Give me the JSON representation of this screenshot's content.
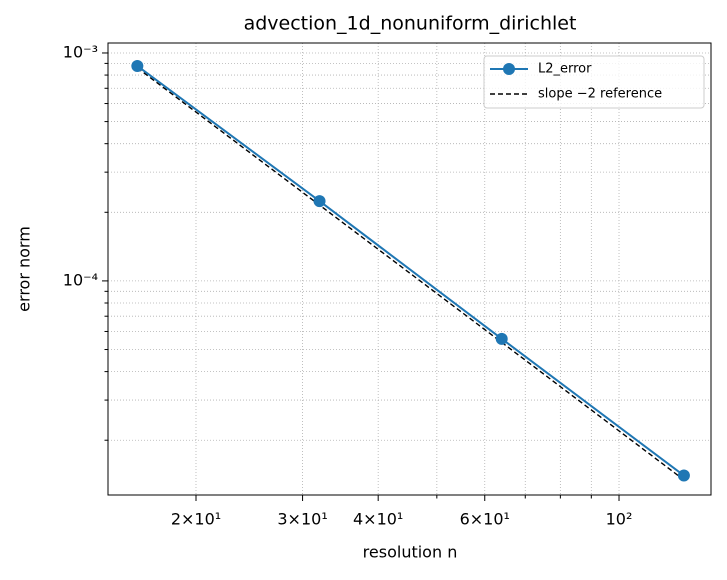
{
  "chart_data": {
    "type": "line",
    "title": "advection_1d_nonuniform_dirichlet",
    "xlabel": "resolution n",
    "ylabel": "error norm",
    "x": [
      16,
      32,
      64,
      128
    ],
    "series": [
      {
        "name": "L2_error",
        "color": "#1f77b4",
        "values": [
          0.000877,
          0.000224,
          5.57e-05,
          1.4e-05
        ],
        "marker": "o",
        "linestyle": "solid"
      },
      {
        "name": "slope −2 reference",
        "color": "#000000",
        "values": [
          0.00086,
          0.000215,
          5.375e-05,
          1.34e-05
        ],
        "linestyle": "dashed"
      }
    ],
    "xscale": "log",
    "yscale": "log",
    "xlim": [
      14.31,
      141.9
    ],
    "ylim": [
      1.15e-05,
      0.001106
    ],
    "xticks": [
      {
        "value": 20,
        "label": "2×10¹"
      },
      {
        "value": 30,
        "label": "3×10¹"
      },
      {
        "value": 40,
        "label": "4×10¹"
      },
      {
        "value": 60,
        "label": "6×10¹"
      },
      {
        "value": 100,
        "label": "10²"
      }
    ],
    "xminorticks": [
      50,
      70,
      80,
      90
    ],
    "yticks": [
      {
        "value": 0.001,
        "label": "10⁻³"
      },
      {
        "value": 0.0001,
        "label": "10⁻⁴"
      }
    ],
    "yminorticks": [
      2e-05,
      3e-05,
      4e-05,
      5e-05,
      6e-05,
      7e-05,
      8e-05,
      9e-05,
      0.0002,
      0.0003,
      0.0004,
      0.0005,
      0.0006,
      0.0007,
      0.0008,
      0.0009
    ],
    "grid": true,
    "legend": "upper right"
  }
}
